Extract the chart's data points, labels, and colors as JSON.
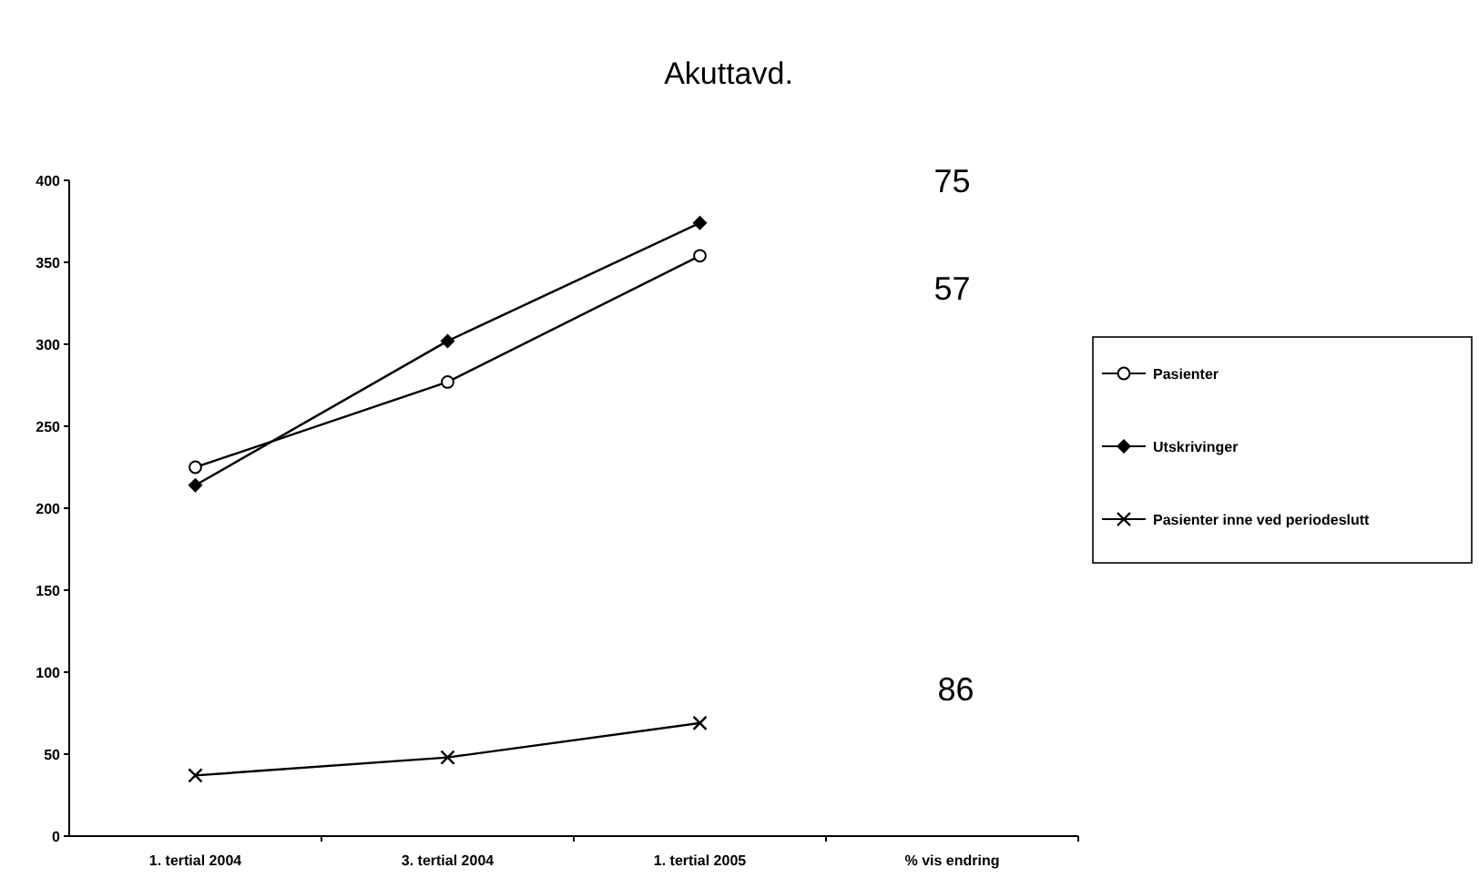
{
  "chart_data": {
    "type": "line",
    "title": "Akuttavd.",
    "categories": [
      "1. tertial 2004",
      "3. tertial 2004",
      "1. tertial 2005",
      "% vis endring"
    ],
    "series": [
      {
        "name": "Pasienter",
        "color": "#000000",
        "marker": "circle",
        "values": [
          225,
          277,
          354,
          null
        ]
      },
      {
        "name": "Utskrivinger",
        "color": "#000000",
        "marker": "diamond",
        "values": [
          214,
          302,
          374,
          null
        ]
      },
      {
        "name": "Pasienter inne ved periodeslutt",
        "color": "#000000",
        "marker": "cross",
        "values": [
          37,
          48,
          69,
          null
        ]
      }
    ],
    "ylim": [
      0,
      400
    ],
    "yticks": [
      0,
      50,
      100,
      150,
      200,
      250,
      300,
      350,
      400
    ],
    "grid": false,
    "legend": "right",
    "annotations": [
      "75",
      "57",
      "86"
    ]
  }
}
